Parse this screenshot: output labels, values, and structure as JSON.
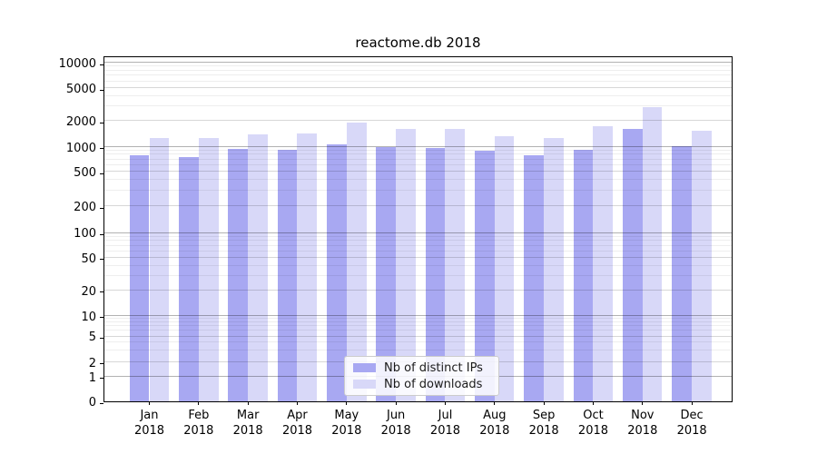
{
  "chart_data": {
    "type": "bar",
    "title": "reactome.db 2018",
    "months": [
      "Jan",
      "Feb",
      "Mar",
      "Apr",
      "May",
      "Jun",
      "Jul",
      "Aug",
      "Sep",
      "Oct",
      "Nov",
      "Dec"
    ],
    "year": "2018",
    "series": [
      {
        "name": "Nb of distinct IPs",
        "color": "#a8a8f2",
        "values": [
          790,
          750,
          940,
          915,
          1060,
          990,
          975,
          895,
          790,
          915,
          1610,
          1010
        ]
      },
      {
        "name": "Nb of downloads",
        "color": "#d8d8f8",
        "values": [
          1260,
          1255,
          1400,
          1430,
          1890,
          1620,
          1605,
          1330,
          1260,
          1710,
          2950,
          1530
        ]
      }
    ],
    "yticks": [
      0,
      1,
      2,
      5,
      10,
      20,
      50,
      100,
      200,
      500,
      1000,
      2000,
      5000,
      10000
    ],
    "ylim": [
      0,
      13000
    ],
    "yscale": "symlog",
    "grid": true,
    "legend_position": "lower center",
    "tick_color": "#000000",
    "spine_color": "#000000"
  }
}
